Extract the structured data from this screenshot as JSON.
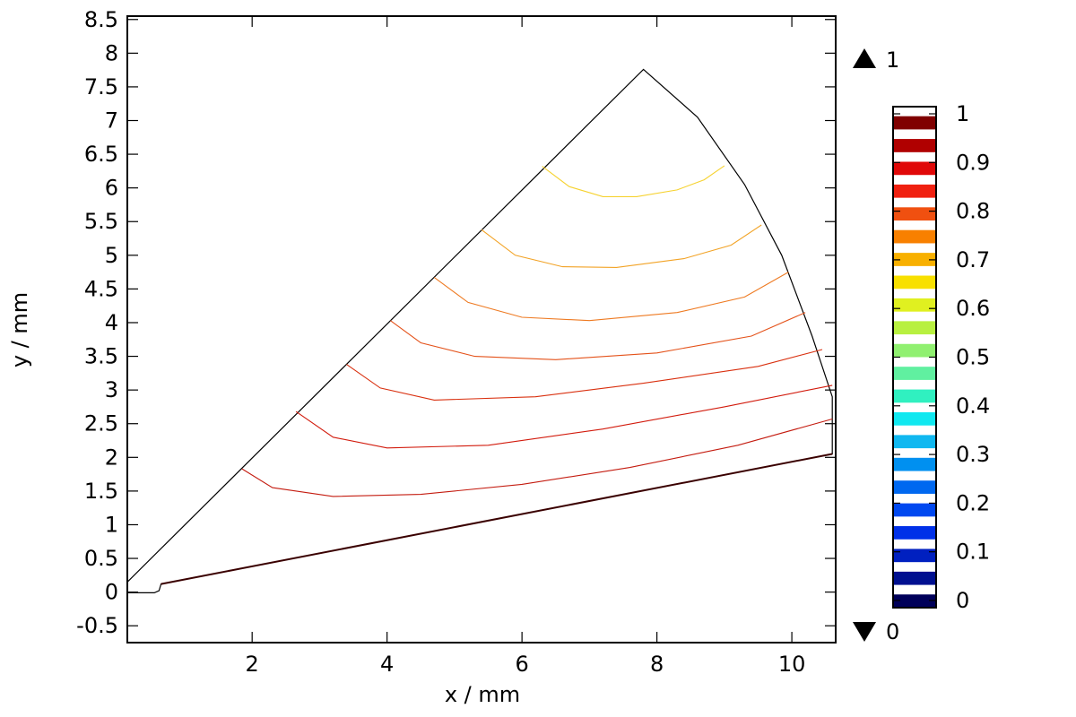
{
  "chart_data": {
    "type": "contour",
    "xlabel": "x / mm",
    "ylabel": "y / mm",
    "xlim": [
      0.15,
      10.65
    ],
    "ylim": [
      -0.75,
      8.55
    ],
    "x_ticks": [
      2,
      4,
      6,
      8,
      10
    ],
    "y_ticks": [
      -0.5,
      0,
      0.5,
      1,
      1.5,
      2,
      2.5,
      3,
      3.5,
      4,
      4.5,
      5,
      5.5,
      6,
      6.5,
      7,
      7.5,
      8,
      8.5
    ],
    "grid": false,
    "domain_outline": [
      [
        0.15,
        0.15
      ],
      [
        7.8,
        7.76
      ],
      [
        8.6,
        7.05
      ],
      [
        9.3,
        6.05
      ],
      [
        9.85,
        5.0
      ],
      [
        10.3,
        3.8
      ],
      [
        10.6,
        2.9
      ],
      [
        10.6,
        2.05
      ],
      [
        0.65,
        0.12
      ],
      [
        0.62,
        0.02
      ],
      [
        0.55,
        -0.01
      ],
      [
        0.15,
        -0.01
      ]
    ],
    "contours": [
      {
        "level": 0.05,
        "color": "#3a0000",
        "points": [
          [
            0.65,
            0.12
          ],
          [
            10.6,
            2.05
          ]
        ]
      },
      {
        "level": 0.95,
        "color": "#c41c10",
        "points": [
          [
            1.85,
            1.83
          ],
          [
            2.3,
            1.55
          ],
          [
            3.2,
            1.42
          ],
          [
            4.5,
            1.45
          ],
          [
            6.0,
            1.6
          ],
          [
            7.6,
            1.85
          ],
          [
            9.2,
            2.18
          ],
          [
            10.6,
            2.57
          ]
        ]
      },
      {
        "level": 0.9,
        "color": "#d21b0d",
        "points": [
          [
            2.65,
            2.68
          ],
          [
            3.2,
            2.3
          ],
          [
            4.0,
            2.14
          ],
          [
            5.5,
            2.18
          ],
          [
            7.2,
            2.42
          ],
          [
            9.0,
            2.75
          ],
          [
            10.6,
            3.07
          ]
        ]
      },
      {
        "level": 0.85,
        "color": "#d9300f",
        "points": [
          [
            3.4,
            3.38
          ],
          [
            3.9,
            3.03
          ],
          [
            4.7,
            2.85
          ],
          [
            6.2,
            2.9
          ],
          [
            7.8,
            3.1
          ],
          [
            9.5,
            3.35
          ],
          [
            10.45,
            3.6
          ]
        ]
      },
      {
        "level": 0.8,
        "color": "#e4521a",
        "points": [
          [
            4.05,
            4.03
          ],
          [
            4.5,
            3.7
          ],
          [
            5.3,
            3.5
          ],
          [
            6.5,
            3.45
          ],
          [
            8.0,
            3.55
          ],
          [
            9.4,
            3.8
          ],
          [
            10.2,
            4.15
          ]
        ]
      },
      {
        "level": 0.75,
        "color": "#ee7a22",
        "points": [
          [
            4.7,
            4.67
          ],
          [
            5.2,
            4.3
          ],
          [
            6.0,
            4.08
          ],
          [
            7.0,
            4.03
          ],
          [
            8.3,
            4.15
          ],
          [
            9.3,
            4.38
          ],
          [
            9.95,
            4.75
          ]
        ]
      },
      {
        "level": 0.7,
        "color": "#f2a326",
        "points": [
          [
            5.4,
            5.38
          ],
          [
            5.9,
            5.0
          ],
          [
            6.6,
            4.83
          ],
          [
            7.4,
            4.82
          ],
          [
            8.4,
            4.95
          ],
          [
            9.1,
            5.15
          ],
          [
            9.55,
            5.45
          ]
        ]
      },
      {
        "level": 0.65,
        "color": "#f6d230",
        "points": [
          [
            6.3,
            6.32
          ],
          [
            6.7,
            6.02
          ],
          [
            7.2,
            5.87
          ],
          [
            7.7,
            5.87
          ],
          [
            8.3,
            5.97
          ],
          [
            8.7,
            6.12
          ],
          [
            9.0,
            6.33
          ]
        ]
      }
    ],
    "colorbar": {
      "range": [
        0,
        1
      ],
      "max_label": "1",
      "min_label": "0",
      "ticks": [
        "1",
        "0.9",
        "0.8",
        "0.7",
        "0.6",
        "0.5",
        "0.4",
        "0.3",
        "0.2",
        "0.1",
        "0"
      ],
      "bands": [
        "#00005a",
        "#001090",
        "#0020c0",
        "#0030e8",
        "#0048f0",
        "#0068f0",
        "#0090f0",
        "#10b8f0",
        "#10e8f0",
        "#30f0c0",
        "#60f0a0",
        "#90f070",
        "#b8f040",
        "#e0f020",
        "#f8e000",
        "#f8b000",
        "#f88000",
        "#f05010",
        "#f02010",
        "#e00808",
        "#b00000",
        "#800000"
      ]
    }
  }
}
